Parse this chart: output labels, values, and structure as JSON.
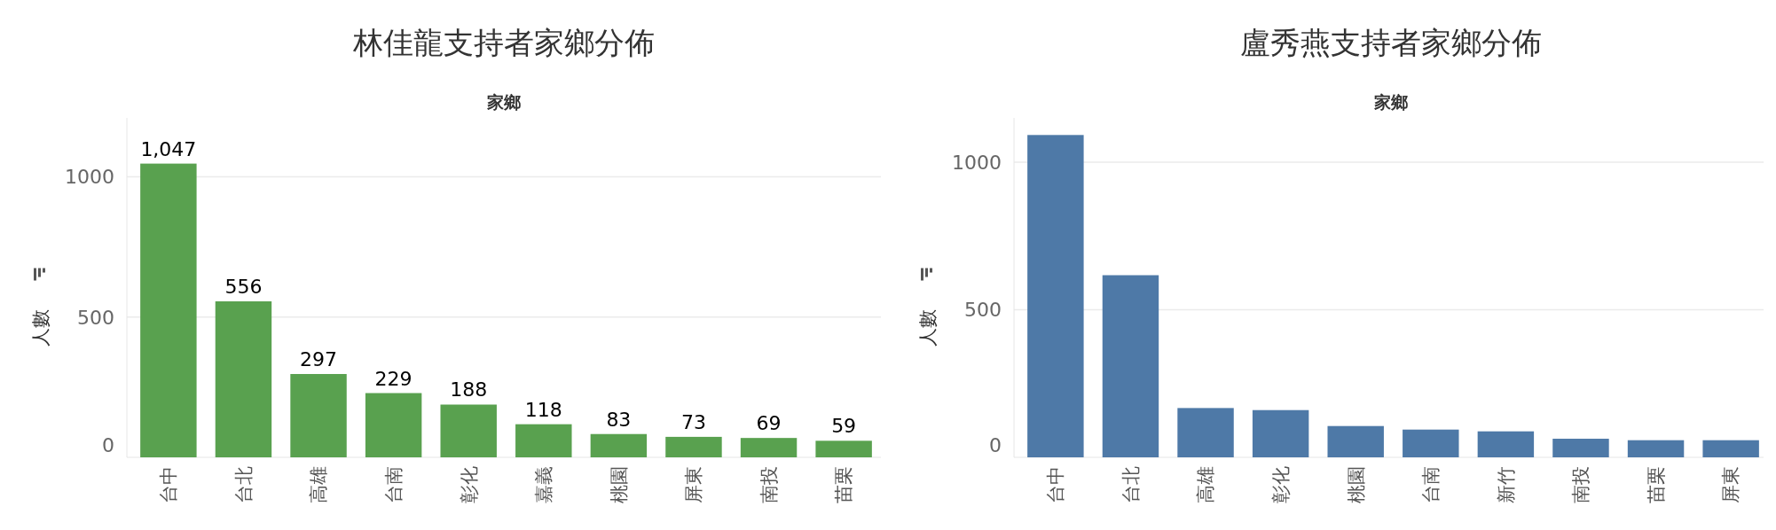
{
  "chart_data": [
    {
      "type": "bar",
      "title": "林佳龍支持者家鄉分佈",
      "xlabel": "家鄉",
      "ylabel": "人數",
      "categories": [
        "台中",
        "台北",
        "高雄",
        "台南",
        "彰化",
        "嘉義",
        "桃園",
        "屏東",
        "南投",
        "苗栗"
      ],
      "values": [
        1047,
        556,
        297,
        229,
        188,
        118,
        83,
        73,
        69,
        59
      ],
      "color": "#59a14f",
      "ylim": [
        0,
        1210
      ],
      "yticks": [
        0,
        500,
        1000
      ],
      "grid": "y",
      "data_labels": true,
      "value_labels": [
        "1,047",
        "556",
        "297",
        "229",
        "188",
        "118",
        "83",
        "73",
        "69",
        "59"
      ]
    },
    {
      "type": "bar",
      "title": "盧秀燕支持者家鄉分佈",
      "xlabel": "家鄉",
      "ylabel": "人數",
      "categories": [
        "台中",
        "台北",
        "高雄",
        "彰化",
        "桃園",
        "台南",
        "新竹",
        "南投",
        "苗栗",
        "屏東"
      ],
      "values": [
        1092,
        617,
        167,
        160,
        106,
        94,
        88,
        63,
        58,
        58
      ],
      "color": "#4e79a7",
      "ylim": [
        0,
        1150
      ],
      "yticks": [
        0,
        500,
        1000
      ],
      "grid": "y"
    }
  ]
}
